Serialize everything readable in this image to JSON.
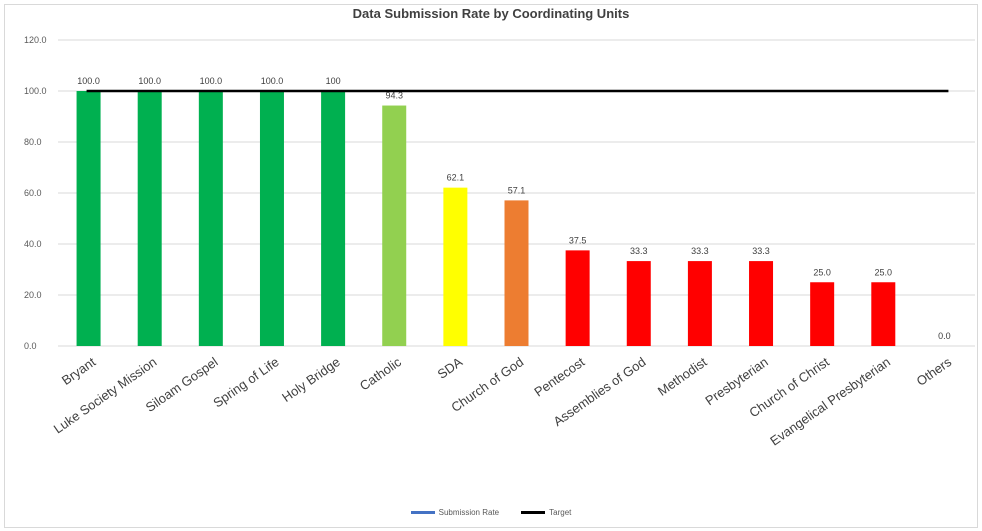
{
  "chart_data": {
    "type": "bar",
    "title": "Data Submission Rate by Coordinating Units",
    "categories": [
      "Bryant",
      "Luke Society Mission",
      "Siloam Gospel",
      "Spring of Life",
      "Holy Bridge",
      "Catholic",
      "SDA",
      "Church of God",
      "Pentecost",
      "Assemblies of God",
      "Methodist",
      "Presbyterian",
      "Church of Christ",
      "Evangelical Presbyterian",
      "Others"
    ],
    "values": [
      100.0,
      100.0,
      100.0,
      100.0,
      100,
      94.3,
      62.1,
      57.1,
      37.5,
      33.3,
      33.3,
      33.3,
      25.0,
      25.0,
      0.0
    ],
    "data_labels": [
      "100.0",
      "100.0",
      "100.0",
      "100.0",
      "100",
      "94.3",
      "62.1",
      "57.1",
      "37.5",
      "33.3",
      "33.3",
      "33.3",
      "25.0",
      "25.0",
      "0.0"
    ],
    "bar_colors": [
      "#00b050",
      "#00b050",
      "#00b050",
      "#00b050",
      "#00b050",
      "#92d050",
      "#ffff00",
      "#ed7d31",
      "#ff0000",
      "#ff0000",
      "#ff0000",
      "#ff0000",
      "#ff0000",
      "#ff0000",
      "#ff0000"
    ],
    "yticks": [
      "0.0",
      "20.0",
      "40.0",
      "60.0",
      "80.0",
      "100.0",
      "120.0"
    ],
    "ylim": [
      0,
      120
    ],
    "target": 100,
    "target_color": "#000000",
    "grid": true,
    "legend_position": "bottom",
    "series": [
      {
        "name": "Submission Rate",
        "color": "#4472c4"
      },
      {
        "name": "Target",
        "color": "#000000"
      }
    ]
  }
}
